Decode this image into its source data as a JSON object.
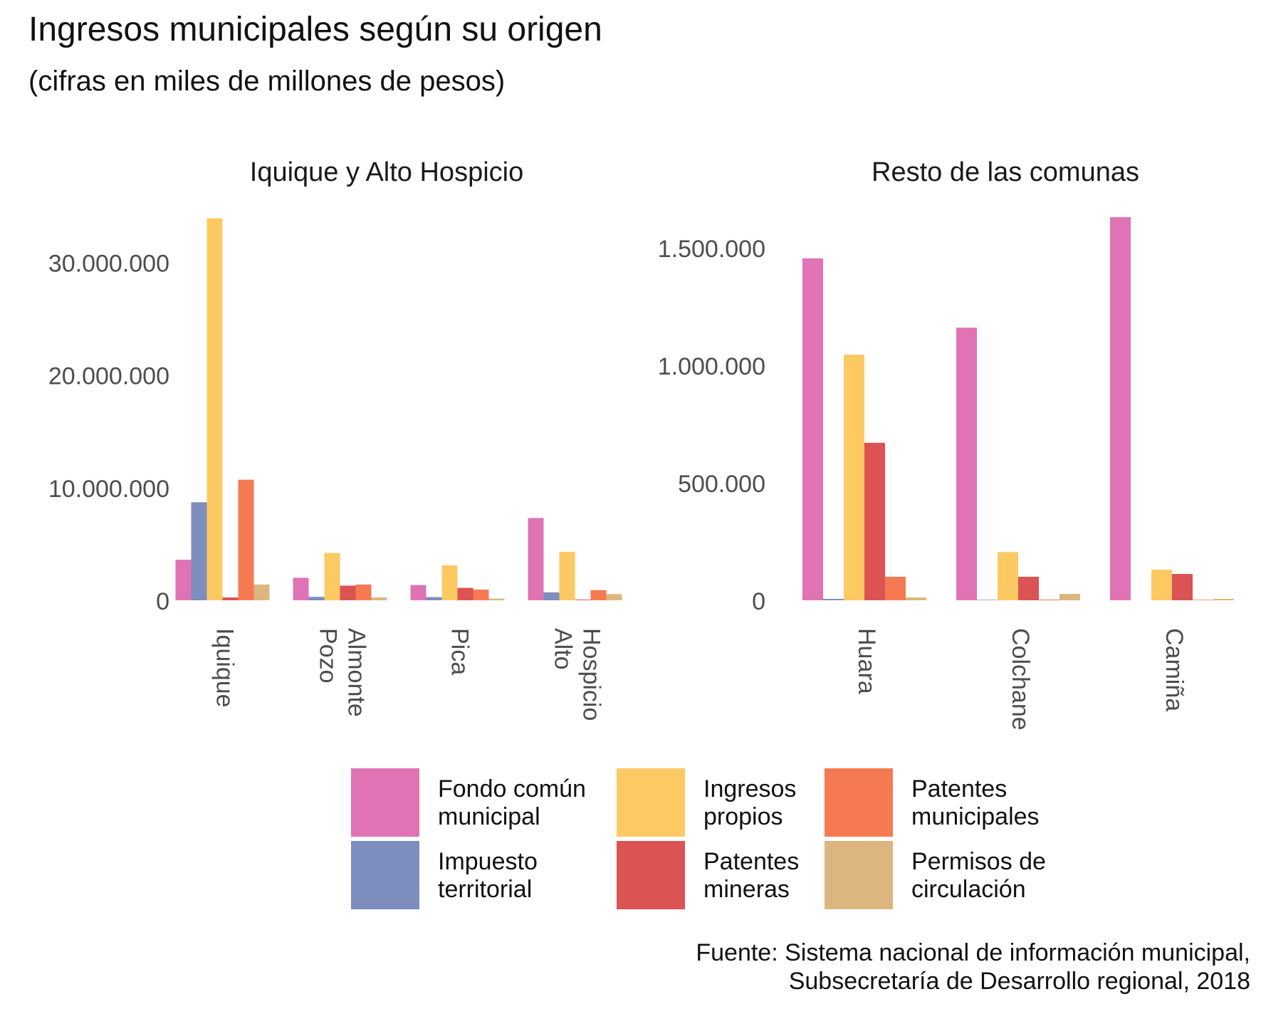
{
  "title": "Ingresos municipales según su origen",
  "subtitle": "(cifras en miles de millones de pesos)",
  "caption": "Fuente: Sistema nacional de información municipal,\nSubsecretaría de Desarrollo regional, 2018",
  "legend": [
    {
      "label": "Fondo común\nmunicipal",
      "color": "#df73b4"
    },
    {
      "label": "Impuesto\nterritorial",
      "color": "#7c8dbe"
    },
    {
      "label": "Ingresos\npropios",
      "color": "#fdc963"
    },
    {
      "label": "Patentes\nmineras",
      "color": "#db5353"
    },
    {
      "label": "Patentes\nmunicipales",
      "color": "#f57a52"
    },
    {
      "label": "Permisos de\ncirculación",
      "color": "#ddb67f"
    }
  ],
  "chart_data": [
    {
      "type": "bar",
      "title": "Iquique y Alto Hospicio",
      "categories": [
        "Iquique",
        "Pozo\nAlmonte",
        "Pica",
        "Alto\nHospicio"
      ],
      "ylim": [
        0,
        34000000
      ],
      "yticks": [
        0,
        10000000,
        20000000,
        30000000
      ],
      "ytick_labels": [
        "0",
        "10.000.000",
        "20.000.000",
        "30.000.000"
      ],
      "grid": false,
      "series": [
        {
          "name": "Fondo común municipal",
          "values": [
            3600000,
            2000000,
            1350000,
            7300000
          ]
        },
        {
          "name": "Impuesto territorial",
          "values": [
            8700000,
            300000,
            280000,
            700000
          ]
        },
        {
          "name": "Ingresos propios",
          "values": [
            33900000,
            4200000,
            3100000,
            4300000
          ]
        },
        {
          "name": "Patentes mineras",
          "values": [
            250000,
            1300000,
            1100000,
            60000
          ]
        },
        {
          "name": "Patentes municipales",
          "values": [
            10700000,
            1400000,
            950000,
            900000
          ]
        },
        {
          "name": "Permisos de circulación",
          "values": [
            1400000,
            250000,
            150000,
            550000
          ]
        }
      ]
    },
    {
      "type": "bar",
      "title": "Resto de las comunas",
      "categories": [
        "Huara",
        "Colchane",
        "Camiña"
      ],
      "ylim": [
        0,
        1630000
      ],
      "yticks": [
        0,
        500000,
        1000000,
        1500000
      ],
      "ytick_labels": [
        "0",
        "500.000",
        "1.000.000",
        "1.500.000"
      ],
      "grid": false,
      "series": [
        {
          "name": "Fondo común municipal",
          "values": [
            1455000,
            1160000,
            1630000
          ]
        },
        {
          "name": "Impuesto territorial",
          "values": [
            6000,
            2000,
            0
          ]
        },
        {
          "name": "Ingresos propios",
          "values": [
            1045000,
            205000,
            130000
          ]
        },
        {
          "name": "Patentes mineras",
          "values": [
            670000,
            100000,
            112000
          ]
        },
        {
          "name": "Patentes municipales",
          "values": [
            100000,
            3000,
            2000
          ]
        },
        {
          "name": "Permisos de circulación",
          "values": [
            12000,
            27000,
            6000
          ]
        }
      ]
    }
  ]
}
